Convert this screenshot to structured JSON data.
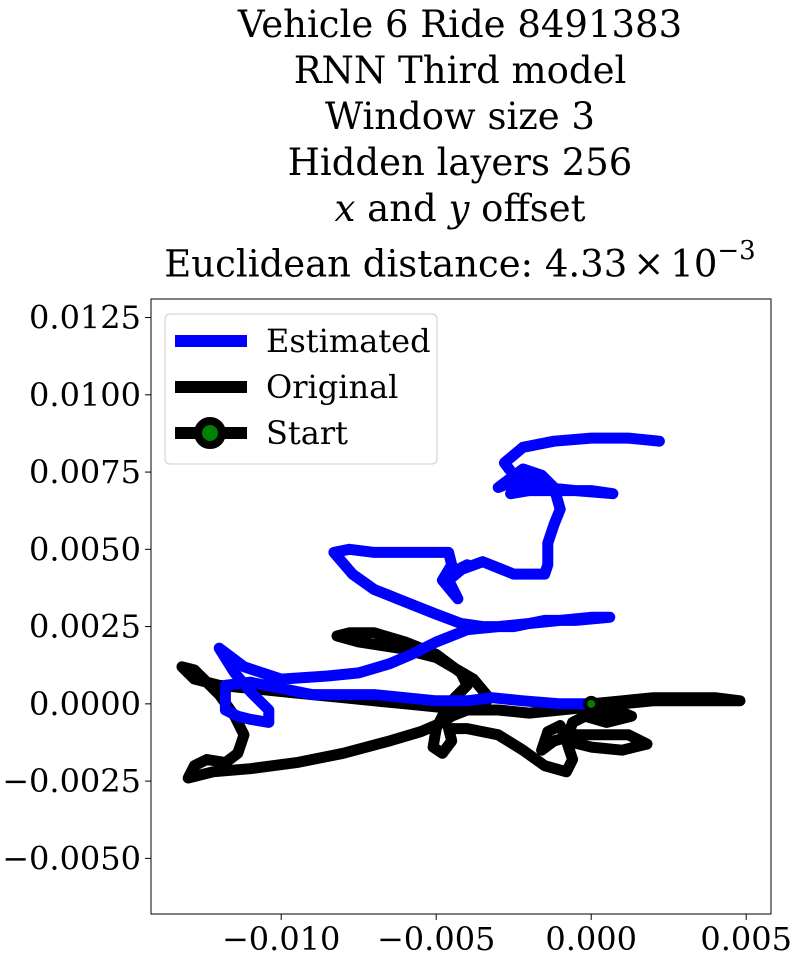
{
  "chart_data": {
    "type": "line",
    "title_lines": [
      "Vehicle 6 Ride 8491383",
      "RNN Third model",
      "Window size 3",
      "Hidden layers 256"
    ],
    "title_offset_line": {
      "x_var": "x",
      "joiner": " and ",
      "y_var": "y",
      "suffix": " offset"
    },
    "title_distance": {
      "prefix": "Euclidean distance: ",
      "mantissa": "4.33",
      "times": "×",
      "base": "10",
      "exponent": "−3"
    },
    "xlabel": "",
    "ylabel": "",
    "xlim": [
      -0.0142,
      0.0058
    ],
    "ylim": [
      -0.0068,
      0.0131
    ],
    "x_ticks": [
      -0.01,
      -0.005,
      0.0,
      0.005
    ],
    "x_tick_labels": [
      "−0.010",
      "−0.005",
      "0.000",
      "0.005"
    ],
    "y_ticks": [
      0.0125,
      0.01,
      0.0075,
      0.005,
      0.0025,
      0.0,
      -0.0025,
      -0.005
    ],
    "y_tick_labels": [
      "0.0125",
      "0.0100",
      "0.0075",
      "0.0050",
      "0.0025",
      "0.0000",
      "−0.0025",
      "−0.0050"
    ],
    "grid": false,
    "legend_position": "top-left",
    "legend": [
      {
        "label": "Estimated",
        "color": "#0000ff",
        "marker": false
      },
      {
        "label": "Original",
        "color": "#000000",
        "marker": false
      },
      {
        "label": "Start",
        "color": "#000000",
        "marker": true,
        "marker_color": "#008000"
      }
    ],
    "series": [
      {
        "name": "Estimated",
        "color": "#0000ff",
        "points": [
          [
            0.0,
            0.0
          ],
          [
            -0.001,
            0.0
          ],
          [
            -0.0022,
            0.0001
          ],
          [
            -0.0032,
            0.0002
          ],
          [
            -0.004,
            0.0001
          ],
          [
            -0.005,
            0.0001
          ],
          [
            -0.006,
            0.0002
          ],
          [
            -0.007,
            0.0003
          ],
          [
            -0.008,
            0.0003
          ],
          [
            -0.009,
            0.0003
          ],
          [
            -0.01,
            0.0005
          ],
          [
            -0.011,
            0.0007
          ],
          [
            -0.0118,
            0.0006
          ],
          [
            -0.0118,
            -0.0002
          ],
          [
            -0.0114,
            -0.0004
          ],
          [
            -0.011,
            -0.0005
          ],
          [
            -0.0104,
            -0.0006
          ],
          [
            -0.0104,
            -0.0002
          ],
          [
            -0.011,
            0.0004
          ],
          [
            -0.0115,
            0.001
          ],
          [
            -0.012,
            0.0018
          ],
          [
            -0.0112,
            0.0012
          ],
          [
            -0.01,
            0.0008
          ],
          [
            -0.0085,
            0.0009
          ],
          [
            -0.0075,
            0.001
          ],
          [
            -0.0065,
            0.0013
          ],
          [
            -0.0058,
            0.0016
          ],
          [
            -0.005,
            0.002
          ],
          [
            -0.004,
            0.0024
          ],
          [
            -0.003,
            0.0025
          ],
          [
            -0.002,
            0.0026
          ],
          [
            -0.001,
            0.0027
          ],
          [
            0.0,
            0.0028
          ],
          [
            0.0006,
            0.0028
          ],
          [
            -0.0005,
            0.0027
          ],
          [
            -0.0015,
            0.0027
          ],
          [
            -0.0025,
            0.0025
          ],
          [
            -0.0035,
            0.0025
          ],
          [
            -0.0042,
            0.0026
          ],
          [
            -0.005,
            0.0029
          ],
          [
            -0.006,
            0.0033
          ],
          [
            -0.007,
            0.0037
          ],
          [
            -0.0077,
            0.0042
          ],
          [
            -0.0083,
            0.0049
          ],
          [
            -0.0078,
            0.005
          ],
          [
            -0.007,
            0.0049
          ],
          [
            -0.006,
            0.0049
          ],
          [
            -0.0052,
            0.0049
          ],
          [
            -0.0046,
            0.0049
          ],
          [
            -0.0045,
            0.0045
          ],
          [
            -0.0048,
            0.004
          ],
          [
            -0.0043,
            0.0034
          ],
          [
            -0.0046,
            0.004
          ],
          [
            -0.004,
            0.0045
          ],
          [
            -0.0046,
            0.0042
          ],
          [
            -0.0035,
            0.0046
          ],
          [
            -0.003,
            0.0044
          ],
          [
            -0.0025,
            0.0042
          ],
          [
            -0.002,
            0.0042
          ],
          [
            -0.0015,
            0.0042
          ],
          [
            -0.0014,
            0.0045
          ],
          [
            -0.0014,
            0.0052
          ],
          [
            -0.0012,
            0.0058
          ],
          [
            -0.001,
            0.0063
          ],
          [
            -0.0012,
            0.007
          ],
          [
            -0.0016,
            0.0074
          ],
          [
            -0.0022,
            0.0076
          ],
          [
            -0.0026,
            0.0073
          ],
          [
            -0.003,
            0.007
          ],
          [
            -0.0025,
            0.0072
          ],
          [
            -0.002,
            0.007
          ],
          [
            -0.0026,
            0.0068
          ],
          [
            -0.002,
            0.0069
          ],
          [
            -0.001,
            0.0069
          ],
          [
            -0.0,
            0.0069
          ],
          [
            0.0007,
            0.0068
          ],
          [
            -0.0005,
            0.0069
          ],
          [
            -0.0015,
            0.007
          ],
          [
            -0.0025,
            0.0074
          ],
          [
            -0.0028,
            0.0078
          ],
          [
            -0.0022,
            0.0083
          ],
          [
            -0.0012,
            0.0085
          ],
          [
            0.0,
            0.0086
          ],
          [
            0.0012,
            0.0086
          ],
          [
            0.0022,
            0.0085
          ]
        ]
      },
      {
        "name": "Original",
        "color": "#000000",
        "points": [
          [
            0.0,
            0.0
          ],
          [
            0.001,
            0.0001
          ],
          [
            0.002,
            0.0002
          ],
          [
            0.003,
            0.0002
          ],
          [
            0.004,
            0.0002
          ],
          [
            0.0048,
            0.0001
          ],
          [
            0.004,
            0.0001
          ],
          [
            0.003,
            0.0001
          ],
          [
            0.002,
            0.0001
          ],
          [
            0.001,
            0.0
          ],
          [
            0.0,
            -0.0001
          ],
          [
            -0.001,
            -0.0002
          ],
          [
            -0.002,
            -0.0003
          ],
          [
            -0.003,
            -0.0002
          ],
          [
            -0.004,
            -0.0002
          ],
          [
            -0.005,
            -0.0001
          ],
          [
            -0.006,
            0.0
          ],
          [
            -0.007,
            0.0001
          ],
          [
            -0.008,
            0.0002
          ],
          [
            -0.009,
            0.0003
          ],
          [
            -0.01,
            0.0004
          ],
          [
            -0.011,
            0.0005
          ],
          [
            -0.012,
            0.0006
          ],
          [
            -0.0128,
            0.0008
          ],
          [
            -0.0132,
            0.0012
          ],
          [
            -0.0128,
            0.0011
          ],
          [
            -0.0125,
            0.0008
          ],
          [
            -0.012,
            0.0003
          ],
          [
            -0.0115,
            -0.0004
          ],
          [
            -0.0112,
            -0.001
          ],
          [
            -0.0114,
            -0.0016
          ],
          [
            -0.0118,
            -0.0019
          ],
          [
            -0.0124,
            -0.0018
          ],
          [
            -0.0128,
            -0.002
          ],
          [
            -0.013,
            -0.0024
          ],
          [
            -0.0122,
            -0.0022
          ],
          [
            -0.011,
            -0.0021
          ],
          [
            -0.0095,
            -0.0019
          ],
          [
            -0.008,
            -0.0016
          ],
          [
            -0.0065,
            -0.0012
          ],
          [
            -0.0055,
            -0.0009
          ],
          [
            -0.0048,
            -0.0006
          ],
          [
            -0.0045,
            -0.0004
          ],
          [
            -0.004,
            -0.0002
          ],
          [
            -0.0035,
            -0.0001
          ],
          [
            -0.0033,
            0.0002
          ],
          [
            -0.0038,
            0.0008
          ],
          [
            -0.005,
            0.0015
          ],
          [
            -0.0062,
            0.0018
          ],
          [
            -0.0075,
            0.002
          ],
          [
            -0.0082,
            0.0022
          ],
          [
            -0.0078,
            0.0023
          ],
          [
            -0.007,
            0.0023
          ],
          [
            -0.006,
            0.002
          ],
          [
            -0.005,
            0.0016
          ],
          [
            -0.0042,
            0.001
          ],
          [
            -0.004,
            0.0006
          ],
          [
            -0.0044,
            0.0002
          ],
          [
            -0.0047,
            -0.0002
          ],
          [
            -0.005,
            -0.0008
          ],
          [
            -0.0051,
            -0.0014
          ],
          [
            -0.0048,
            -0.0016
          ],
          [
            -0.0045,
            -0.0012
          ],
          [
            -0.0046,
            -0.0008
          ],
          [
            -0.004,
            -0.0008
          ],
          [
            -0.003,
            -0.001
          ],
          [
            -0.0022,
            -0.0015
          ],
          [
            -0.0015,
            -0.002
          ],
          [
            -0.0008,
            -0.0022
          ],
          [
            -0.0006,
            -0.0018
          ],
          [
            -0.0008,
            -0.0012
          ],
          [
            -0.001,
            -0.0007
          ],
          [
            -0.0014,
            -0.0009
          ],
          [
            -0.0016,
            -0.0015
          ],
          [
            -0.0012,
            -0.0012
          ],
          [
            -0.0005,
            -0.001
          ],
          [
            0.0003,
            -0.001
          ],
          [
            0.0012,
            -0.001
          ],
          [
            0.0018,
            -0.0013
          ],
          [
            0.001,
            -0.0015
          ],
          [
            0.0,
            -0.0014
          ],
          [
            -0.0008,
            -0.0012
          ],
          [
            -0.0006,
            -0.0006
          ],
          [
            0.0,
            -0.0003
          ],
          [
            0.0008,
            -0.0002
          ],
          [
            0.0013,
            -0.0004
          ],
          [
            0.0005,
            -0.0006
          ],
          [
            -0.0002,
            -0.0004
          ],
          [
            0.0002,
            -0.0001
          ],
          [
            0.0,
            0.0
          ]
        ]
      }
    ],
    "start_point": [
      0.0,
      0.0
    ]
  }
}
